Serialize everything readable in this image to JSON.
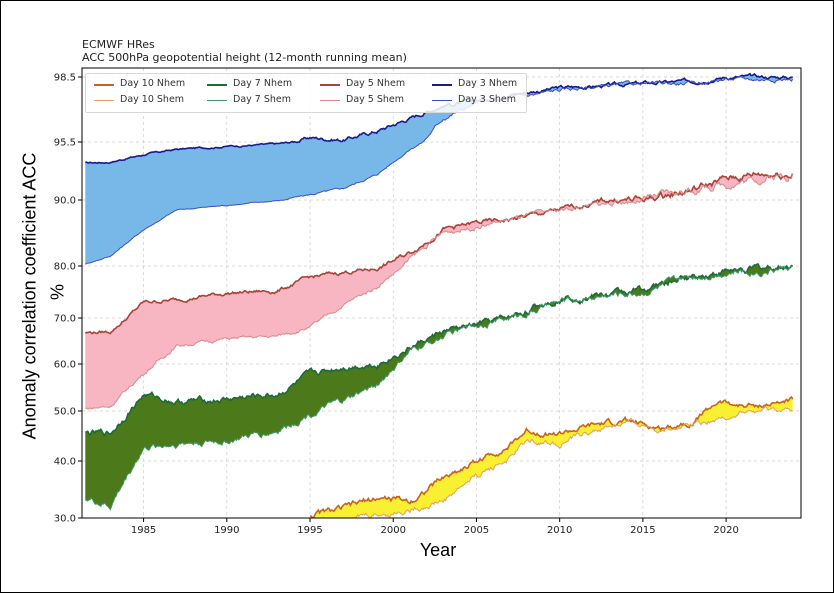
{
  "title_lines": [
    "ECMWF HRes",
    "ACC 500hPa geopotential height (12-month running mean)"
  ],
  "ylabel": "Anomaly correlation coefficient  ACC",
  "ylabel_unit": "%",
  "xlabel": "Year",
  "colors": {
    "day3_n": "#1a1a8c",
    "day3_s": "#3d4fc4",
    "day3_fill": "#78b8e8",
    "day5_n": "#a8443a",
    "day5_s": "#d88a8a",
    "day5_fill": "#f7b6c2",
    "day7_n": "#1e6b3a",
    "day7_s": "#3c9a66",
    "day7_fill": "#4c7a1a",
    "day10_n": "#c8641e",
    "day10_s": "#e0a060",
    "day10_fill": "#f8f030"
  },
  "chart_data": {
    "type": "area",
    "title": "ECMWF HRes",
    "subtitle": "ACC 500hPa geopotential height (12-month running mean)",
    "xlabel": "Year",
    "ylabel": "Anomaly correlation coefficient  ACC %",
    "xlim": [
      1981.3,
      2024.5
    ],
    "y_ticks": [
      "30.0",
      "40.0",
      "50.0",
      "60.0",
      "70.0",
      "80.0",
      "90.0",
      "95.5",
      "98.5"
    ],
    "x_ticks": [
      "1985",
      "1990",
      "1995",
      "2000",
      "2005",
      "2010",
      "2015",
      "2020"
    ],
    "grid": true,
    "legend_position": "top-left",
    "legend": [
      "Day 10 Nhem",
      "Day 10 Shem",
      "Day 7 Nhem",
      "Day 7 Shem",
      "Day 5 Nhem",
      "Day 5 Shem",
      "Day 3 Nhem",
      "Day 3 Shem"
    ],
    "series": [
      {
        "name": "Day 3 Nhem",
        "x": [
          1981.5,
          1983,
          1985,
          1987,
          1990,
          1993,
          1995,
          1997,
          1999,
          2001,
          2003,
          2005,
          2007,
          2010,
          2013,
          2015,
          2018,
          2020,
          2022,
          2024
        ],
        "values": [
          93.5,
          93.6,
          94.3,
          94.8,
          95.1,
          95.3,
          95.7,
          95.6,
          96.0,
          96.6,
          97.2,
          97.4,
          97.7,
          98.0,
          98.1,
          98.2,
          98.3,
          98.5,
          98.5,
          98.5
        ]
      },
      {
        "name": "Day 3 Shem",
        "x": [
          1981.5,
          1983,
          1985,
          1987,
          1990,
          1993,
          1995,
          1997,
          1999,
          2001,
          2003,
          2005,
          2007,
          2010,
          2013,
          2015,
          2018,
          2020,
          2022,
          2024
        ],
        "values": [
          80.3,
          81.5,
          85.5,
          88.5,
          89.2,
          89.9,
          90.5,
          91.1,
          92.4,
          94.8,
          96.6,
          97.3,
          97.5,
          97.9,
          98.1,
          98.2,
          98.2,
          98.4,
          98.4,
          98.4
        ]
      },
      {
        "name": "Day 5 Nhem",
        "x": [
          1981.5,
          1983,
          1985,
          1987,
          1990,
          1993,
          1995,
          1997,
          1999,
          2001,
          2003,
          2005,
          2007,
          2010,
          2013,
          2015,
          2018,
          2020,
          2022,
          2024
        ],
        "values": [
          66.8,
          67.0,
          73.0,
          73.5,
          74.8,
          75.2,
          77.8,
          78.8,
          79.5,
          82.0,
          85.5,
          86.5,
          87.0,
          88.5,
          90.0,
          90.0,
          91.0,
          92.0,
          92.5,
          92.5
        ]
      },
      {
        "name": "Day 5 Shem",
        "x": [
          1981.5,
          1983,
          1985,
          1987,
          1990,
          1993,
          1995,
          1997,
          1999,
          2001,
          2003,
          2005,
          2007,
          2010,
          2013,
          2015,
          2018,
          2020,
          2022,
          2024
        ],
        "values": [
          50.5,
          51.0,
          58.0,
          64.0,
          65.5,
          66.0,
          68.0,
          72.5,
          76.0,
          81.0,
          85.0,
          86.0,
          87.0,
          88.5,
          89.5,
          90.0,
          91.0,
          91.5,
          92.0,
          92.5
        ]
      },
      {
        "name": "Day 7 Nhem",
        "x": [
          1981.5,
          1983,
          1985,
          1987,
          1990,
          1993,
          1995,
          1997,
          1999,
          2001,
          2003,
          2005,
          2007,
          2010,
          2013,
          2015,
          2018,
          2020,
          2022,
          2024
        ],
        "values": [
          45.5,
          45.5,
          53.5,
          52.0,
          52.5,
          53.5,
          57.5,
          59.5,
          60.0,
          63.5,
          67.0,
          68.5,
          70.0,
          74.0,
          74.5,
          75.5,
          78.0,
          79.0,
          79.5,
          80.0
        ]
      },
      {
        "name": "Day 7 Shem",
        "x": [
          1981.5,
          1983,
          1985,
          1987,
          1990,
          1993,
          1995,
          1997,
          1999,
          2001,
          2003,
          2005,
          2007,
          2010,
          2013,
          2015,
          2018,
          2020,
          2022,
          2024
        ],
        "values": [
          33.5,
          32.0,
          42.5,
          43.5,
          44.0,
          46.0,
          49.5,
          52.0,
          55.5,
          62.5,
          66.0,
          68.5,
          70.0,
          73.0,
          74.5,
          75.0,
          78.0,
          79.0,
          79.0,
          80.0
        ]
      },
      {
        "name": "Day 10 Nhem",
        "x": [
          1995,
          1997,
          1999,
          2001,
          2003,
          2005,
          2007,
          2008,
          2010,
          2012,
          2014,
          2016,
          2018,
          2019.5,
          2021,
          2023,
          2024
        ],
        "values": [
          30.5,
          31.5,
          33.5,
          33.0,
          37.0,
          40.0,
          43.0,
          46.0,
          45.5,
          47.0,
          48.0,
          46.5,
          48.0,
          52.0,
          51.0,
          51.5,
          52.5
        ]
      },
      {
        "name": "Day 10 Shem",
        "x": [
          1995,
          1997,
          1999,
          2001,
          2003,
          2005,
          2007,
          2008,
          2010,
          2012,
          2014,
          2016,
          2018,
          2019.5,
          2021,
          2023,
          2024
        ],
        "values": [
          29.5,
          30.0,
          30.5,
          31.5,
          33.0,
          37.5,
          40.5,
          44.0,
          43.5,
          46.0,
          47.5,
          46.5,
          47.5,
          48.5,
          49.5,
          50.0,
          50.0
        ]
      }
    ],
    "bands": [
      {
        "upper": "Day 3 Nhem",
        "lower": "Day 3 Shem",
        "fill": "#78b8e8"
      },
      {
        "upper": "Day 5 Nhem",
        "lower": "Day 5 Shem",
        "fill": "#f7b6c2"
      },
      {
        "upper": "Day 7 Nhem",
        "lower": "Day 7 Shem",
        "fill": "#4c7a1a"
      },
      {
        "upper": "Day 10 Nhem",
        "lower": "Day 10 Shem",
        "fill": "#f8f030"
      }
    ]
  }
}
